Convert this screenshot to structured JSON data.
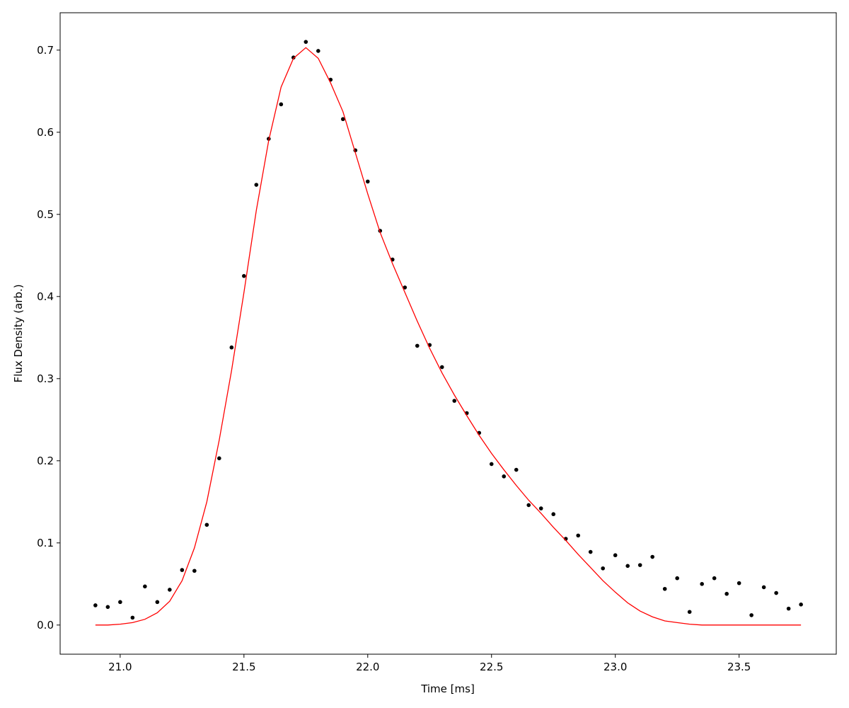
{
  "chart_data": {
    "type": "scatter",
    "xlabel": "Time [ms]",
    "ylabel": "Flux Density (arb.)",
    "x": [
      20.9,
      20.95,
      21.0,
      21.05,
      21.1,
      21.15,
      21.2,
      21.25,
      21.3,
      21.35,
      21.4,
      21.45,
      21.5,
      21.55,
      21.6,
      21.65,
      21.7,
      21.75,
      21.8,
      21.85,
      21.9,
      21.95,
      22.0,
      22.05,
      22.1,
      22.15,
      22.2,
      22.25,
      22.3,
      22.35,
      22.4,
      22.45,
      22.5,
      22.55,
      22.6,
      22.65,
      22.7,
      22.75,
      22.8,
      22.85,
      22.9,
      22.95,
      23.0,
      23.05,
      23.1,
      23.15,
      23.2,
      23.25,
      23.3,
      23.35,
      23.4,
      23.45,
      23.5,
      23.55,
      23.6,
      23.65,
      23.7,
      23.75
    ],
    "series": [
      {
        "type": "scatter",
        "color": "#000000",
        "values": [
          0.024,
          0.022,
          0.028,
          0.009,
          0.047,
          0.028,
          0.043,
          0.067,
          0.066,
          0.122,
          0.203,
          0.338,
          0.425,
          0.536,
          0.592,
          0.634,
          0.691,
          0.71,
          0.699,
          0.664,
          0.616,
          0.578,
          0.54,
          0.48,
          0.445,
          0.411,
          0.34,
          0.341,
          0.314,
          0.273,
          0.258,
          0.234,
          0.196,
          0.181,
          0.189,
          0.146,
          0.142,
          0.135,
          0.105,
          0.109,
          0.089,
          0.069,
          0.085,
          0.072,
          0.073,
          0.083,
          0.044,
          0.057,
          0.016,
          0.05,
          0.057,
          0.038,
          0.051,
          0.012,
          0.046,
          0.039,
          0.02,
          0.025
        ]
      },
      {
        "type": "line",
        "color": "#ff0000",
        "values": [
          0,
          0,
          0.001,
          0.003,
          0.007,
          0.015,
          0.029,
          0.054,
          0.094,
          0.15,
          0.225,
          0.31,
          0.405,
          0.505,
          0.59,
          0.655,
          0.69,
          0.703,
          0.69,
          0.66,
          0.625,
          0.575,
          0.525,
          0.478,
          0.44,
          0.405,
          0.37,
          0.337,
          0.307,
          0.28,
          0.255,
          0.231,
          0.209,
          0.189,
          0.17,
          0.152,
          0.136,
          0.119,
          0.103,
          0.086,
          0.07,
          0.054,
          0.04,
          0.027,
          0.017,
          0.01,
          0.005,
          0.003,
          0.001,
          0,
          0,
          0,
          0,
          0,
          0,
          0,
          0,
          0
        ]
      }
    ],
    "xlim": [
      20.7575,
      23.8925
    ],
    "xticks": [
      {
        "value": 21,
        "label": "21.0"
      },
      21.5,
      {
        "value": 22,
        "label": "22.0"
      },
      22.5,
      {
        "value": 23,
        "label": "23.0"
      },
      23.5
    ],
    "ylim": [
      -0.0355,
      0.7455
    ],
    "yticks": [
      {
        "value": 0,
        "label": "0.0"
      },
      0.1,
      0.2,
      0.3,
      0.4,
      0.5,
      0.6,
      0.7
    ],
    "grid": false
  }
}
